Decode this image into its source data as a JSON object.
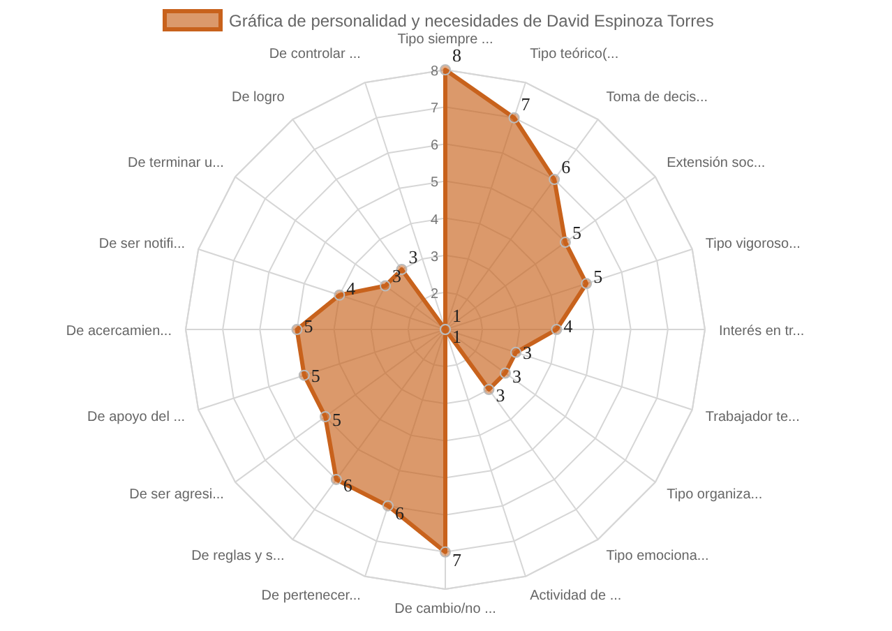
{
  "chart_data": {
    "type": "radar",
    "categories": [
      "Tipo siempre ...",
      "Tipo teórico(...",
      "Toma de decis...",
      "Extensión soc...",
      "Tipo vigoroso...",
      "Interés en tr...",
      "Trabajador te...",
      "Tipo organiza...",
      "Tipo emociona...",
      "Actividad de ...",
      "De cambio/no ...",
      "De pertenecer...",
      "De reglas y s...",
      "De ser agresi...",
      "De apoyo del ...",
      "De acercamien...",
      "De ser notifi...",
      "De terminar u...",
      "De logro",
      "De controlar ..."
    ],
    "series": [
      {
        "name": "Gráfica de personalidad y necesidades de David Espinoza Torres",
        "color": "#c8621c",
        "values": [
          8,
          7,
          6,
          5,
          5,
          4,
          3,
          3,
          3,
          1,
          7,
          6,
          6,
          5,
          5,
          5,
          4,
          3,
          3,
          1
        ]
      }
    ],
    "ylim": [
      1,
      8
    ],
    "yticks": [
      2,
      3,
      4,
      5,
      6,
      7,
      8
    ],
    "grid": true,
    "legend": "top",
    "data_labels": true,
    "marker": "circle"
  }
}
